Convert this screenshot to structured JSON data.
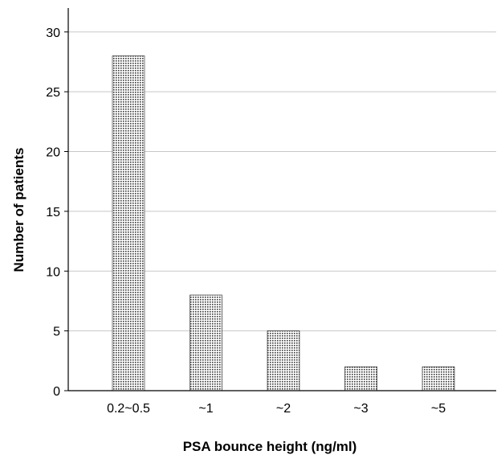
{
  "chart_data": {
    "type": "bar",
    "title": "",
    "xlabel": "PSA bounce height (ng/ml)",
    "ylabel": "Number of patients",
    "categories": [
      "0.2~0.5",
      "~1",
      "~2",
      "~3",
      "~5"
    ],
    "values": [
      28,
      8,
      5,
      2,
      2
    ],
    "ylim": [
      0,
      32
    ],
    "yticks": [
      0,
      5,
      10,
      15,
      20,
      25,
      30
    ],
    "grid": "horizontal",
    "legend": "none",
    "colors": {
      "bar_fill": "#ffffff",
      "bar_pattern": "#3a3a3a",
      "bar_stroke": "#1a1a1a",
      "grid": "#c8c8c8",
      "axis": "#000000"
    }
  }
}
